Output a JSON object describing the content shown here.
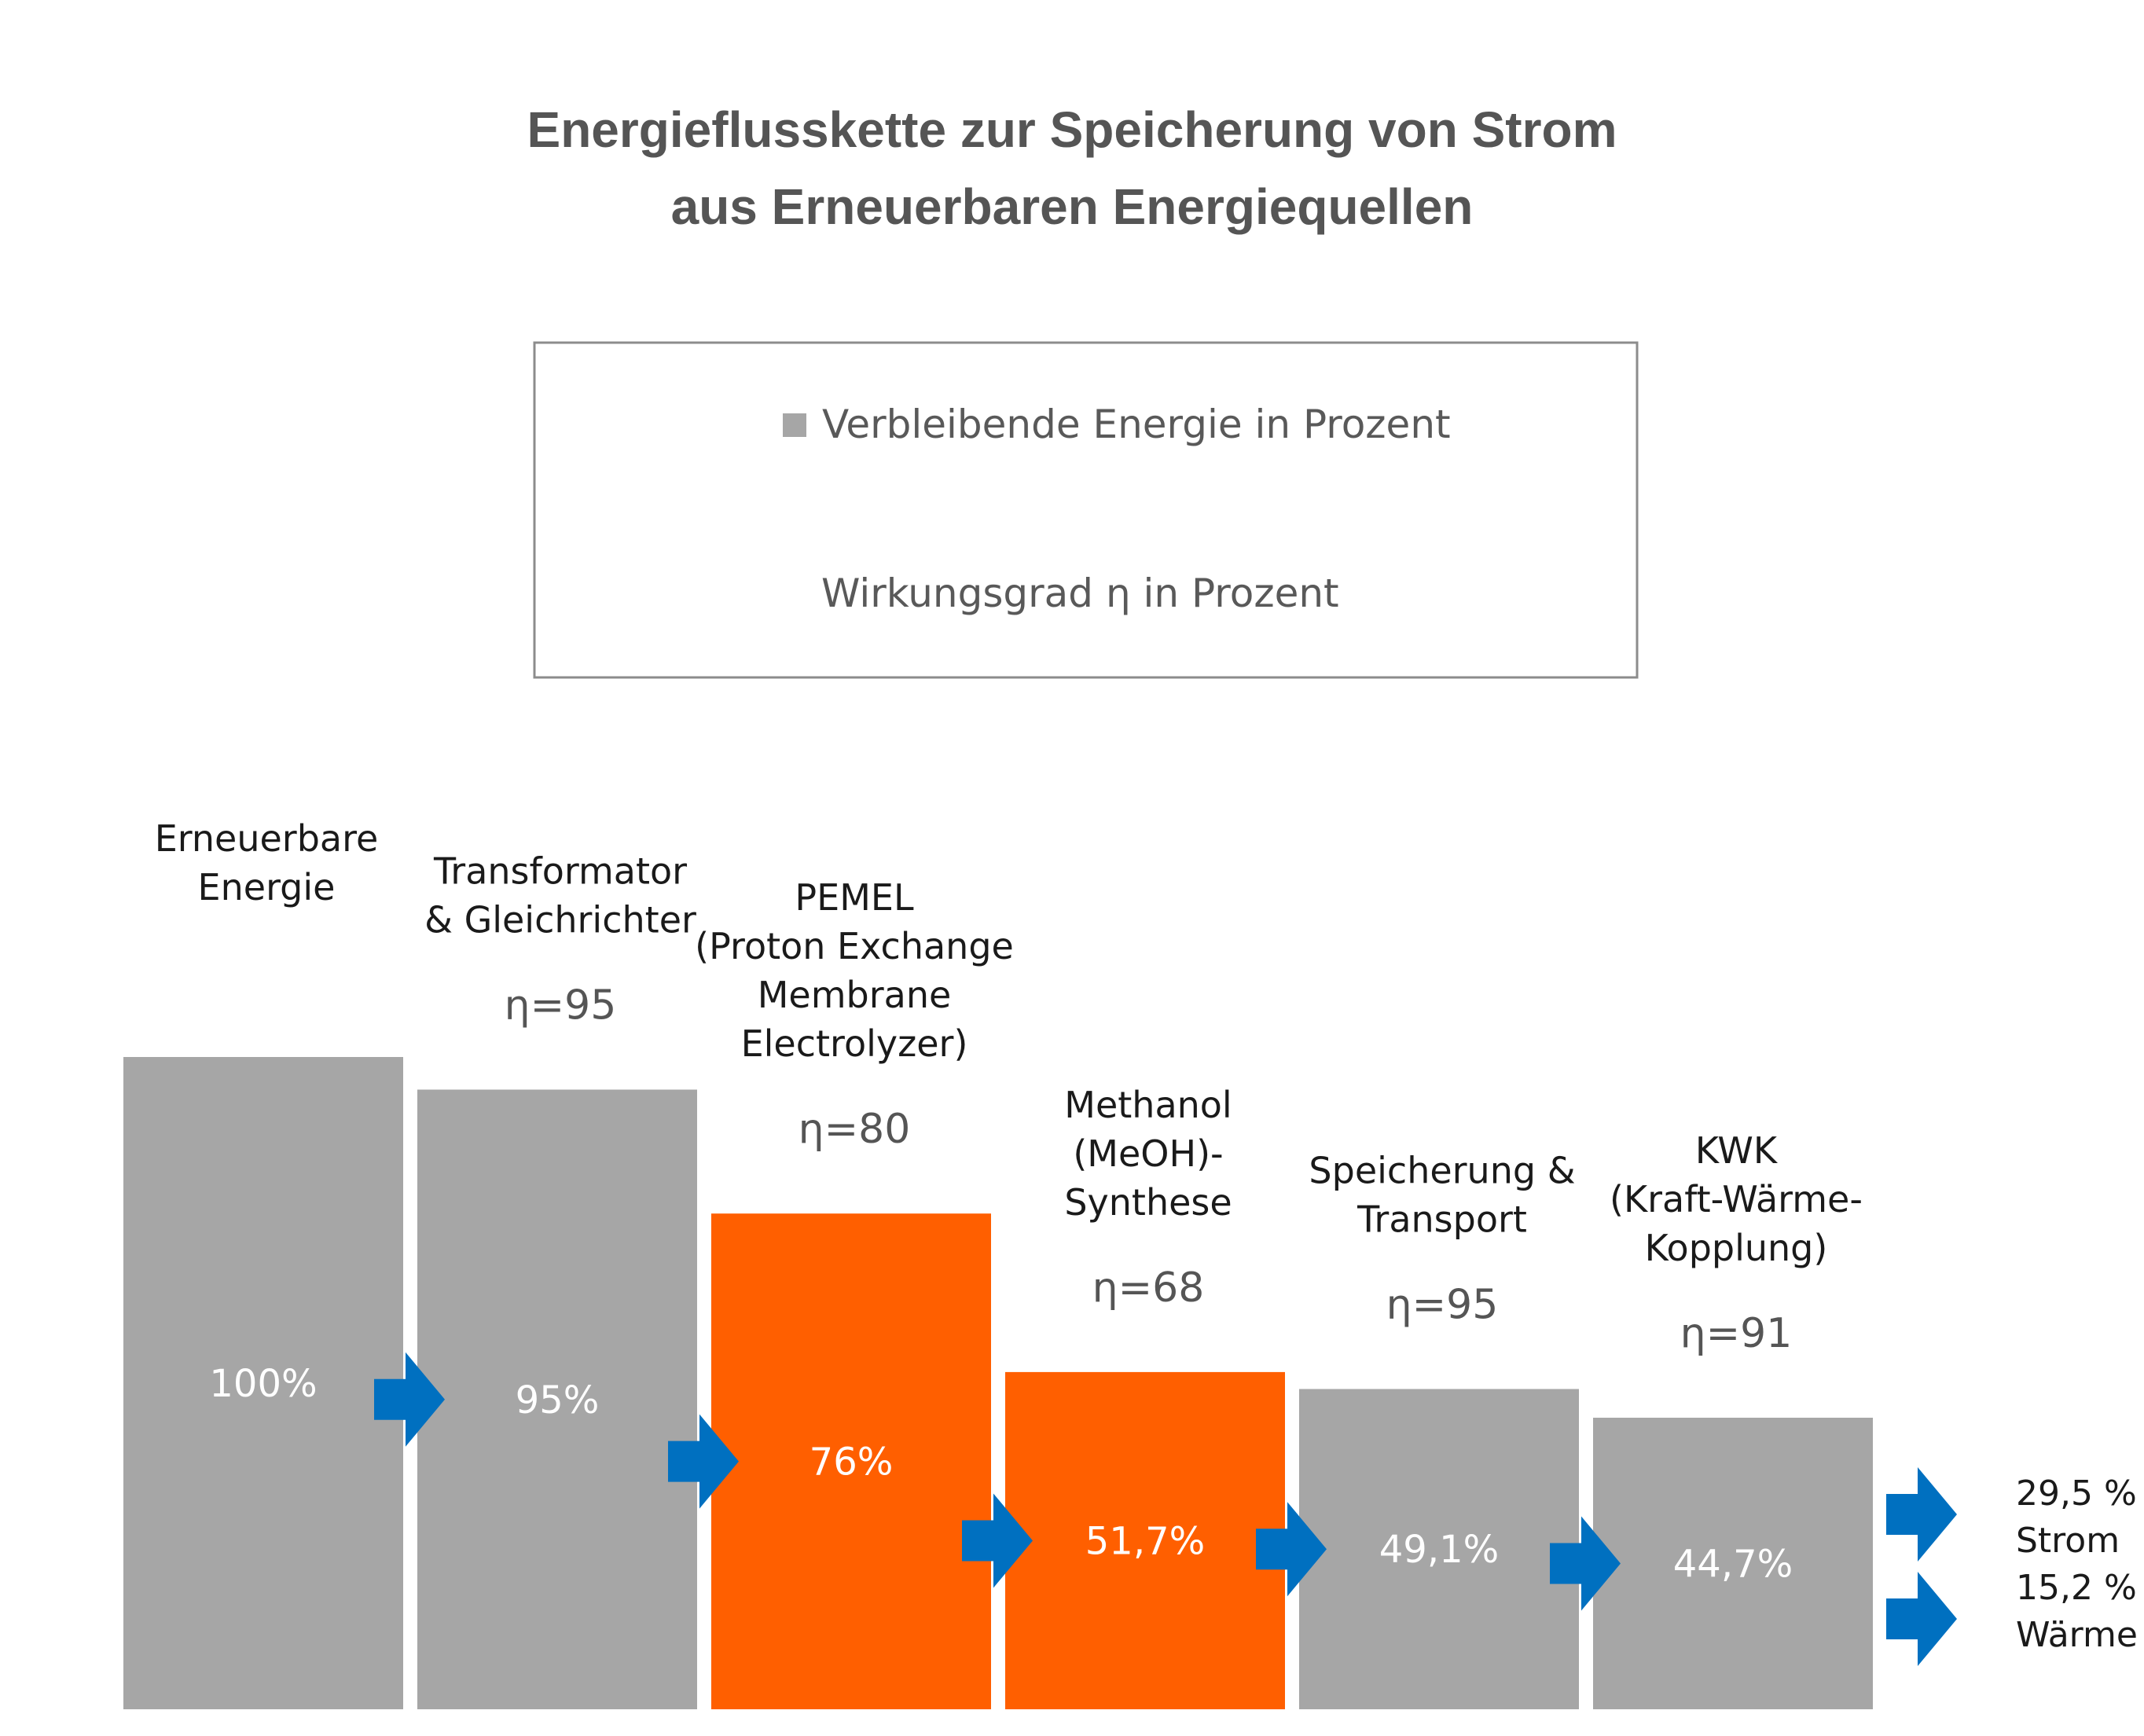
{
  "chart_data": {
    "type": "bar",
    "title_lines": [
      "Energieflusskette zur Speicherung von Strom",
      "aus Erneuerbaren Energiequellen"
    ],
    "legend": {
      "series_label": "Verbleibende Energie in Prozent",
      "efficiency_label": "Wirkungsgrad η in Prozent"
    },
    "categories": [
      [
        "Erneuerbare",
        "Energie"
      ],
      [
        "Transformator",
        "& Gleichrichter"
      ],
      [
        "PEMEL",
        "(Proton Exchange",
        "Membrane",
        "Electrolyzer)"
      ],
      [
        "Methanol",
        "(MeOH)-",
        "Synthese"
      ],
      [
        "Speicherung &",
        "Transport"
      ],
      [
        "KWK",
        "(Kraft-Wärme-",
        "Kopplung)"
      ]
    ],
    "efficiency_labels": [
      "",
      "η=95",
      "η=80",
      "η=68",
      "η=95",
      "η=91"
    ],
    "values": [
      100,
      95,
      76,
      51.7,
      49.1,
      44.7
    ],
    "value_labels": [
      "100%",
      "95%",
      "76%",
      "51,7%",
      "49,1%",
      "44,7%"
    ],
    "highlighted": [
      false,
      false,
      true,
      true,
      false,
      false
    ],
    "outputs": [
      {
        "value": "29,5 %",
        "label": "Strom"
      },
      {
        "value": "15,2 %",
        "label": "Wärme"
      }
    ],
    "colors": {
      "bar": "#a6a6a6",
      "highlight": "#ff5f00",
      "arrow": "#0070c0",
      "title": "#555555",
      "legend_border": "#8c8c8c"
    },
    "ylim": [
      0,
      100
    ]
  }
}
